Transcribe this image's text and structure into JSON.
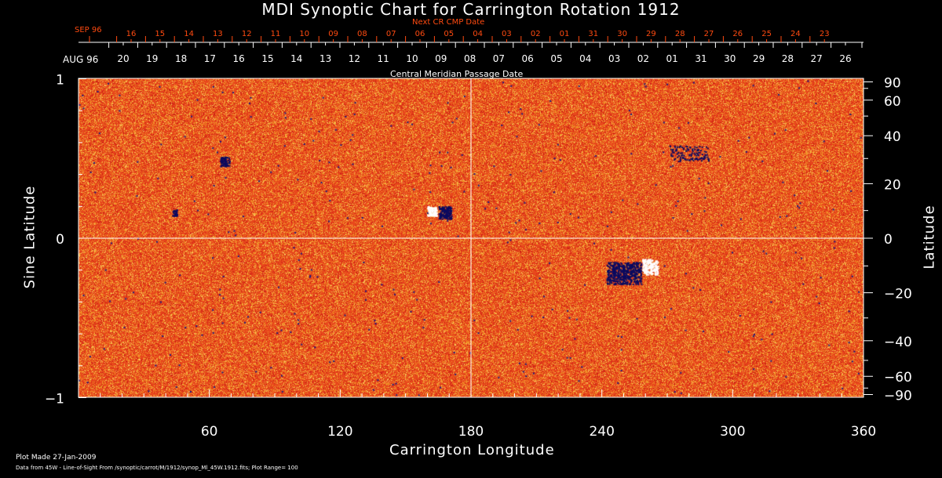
{
  "chart_data": {
    "type": "heatmap",
    "title": "MDI Synoptic Chart for Carrington Rotation 1912",
    "xlabel": "Carrington Longitude",
    "ylabel": "Sine Latitude",
    "y2label": "Latitude",
    "xlim": [
      0,
      360
    ],
    "ylim": [
      -1,
      1
    ],
    "x_ticks": [
      60,
      120,
      180,
      240,
      300,
      360
    ],
    "y_ticks": [
      {
        "value": 1,
        "label": "1"
      },
      {
        "value": 0,
        "label": "0"
      },
      {
        "value": -1,
        "label": "−1"
      }
    ],
    "y2_ticks": [
      90,
      60,
      40,
      20,
      0,
      -20,
      -40,
      -60,
      -90
    ],
    "grid": "lines at longitude 180 and sine latitude 0",
    "top_axis": {
      "label": "Central Meridian Passage Date",
      "month_label": "AUG 96",
      "dates": [
        "20",
        "19",
        "18",
        "17",
        "16",
        "15",
        "14",
        "13",
        "12",
        "11",
        "10",
        "09",
        "08",
        "07",
        "06",
        "05",
        "04",
        "03",
        "02",
        "01",
        "31",
        "30",
        "29",
        "28",
        "27",
        "26"
      ]
    },
    "next_cr_axis": {
      "label": "Next CR CMP Date",
      "month_label": "SEP 96",
      "dates": [
        "16",
        "15",
        "14",
        "13",
        "12",
        "11",
        "10",
        "09",
        "08",
        "07",
        "06",
        "05",
        "04",
        "03",
        "02",
        "01",
        "31",
        "30",
        "29",
        "28",
        "27",
        "26",
        "25",
        "24",
        "23"
      ],
      "color": "#ff4a10"
    },
    "colors": {
      "background_field": "#e8481c",
      "positive": "#ffffff",
      "negative": "#0a0a60"
    },
    "plot_range": 100
  },
  "footer": {
    "plot_made": "Plot Made 27-Jan-2009",
    "data_from": "Data from 45W - Line-of-Sight From /synoptic/carrot/M/1912/synop_Ml_45W.1912.fits; Plot Range=  100"
  }
}
